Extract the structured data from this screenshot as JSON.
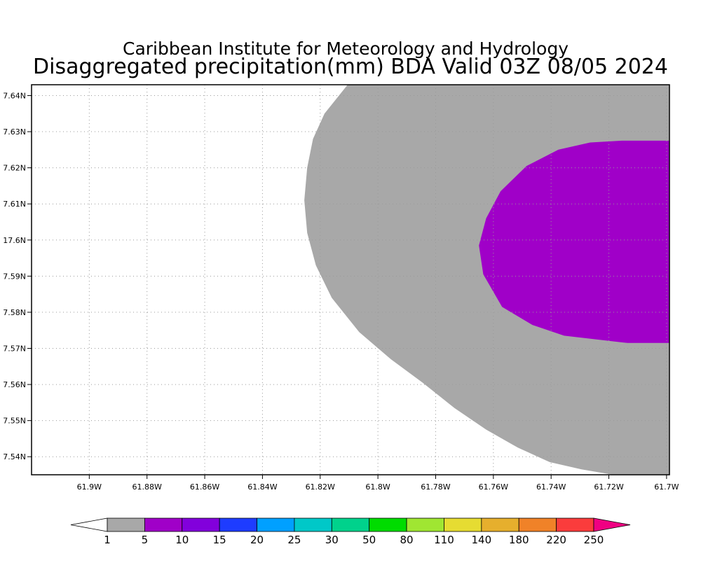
{
  "map": {
    "title_line1": "Caribbean Institute for Meteorology and Hydrology",
    "title_line2": "Disaggregated precipitation(mm) BDA Valid 03Z 08/05 2024",
    "lon_range": [
      -61.92,
      -61.699
    ],
    "lat_range": [
      17.535,
      17.643
    ],
    "x_ticks": [
      {
        "lon": -61.9,
        "label": "61.9W"
      },
      {
        "lon": -61.88,
        "label": "61.88W"
      },
      {
        "lon": -61.86,
        "label": "61.86W"
      },
      {
        "lon": -61.84,
        "label": "61.84W"
      },
      {
        "lon": -61.82,
        "label": "61.82W"
      },
      {
        "lon": -61.8,
        "label": "61.8W"
      },
      {
        "lon": -61.78,
        "label": "61.78W"
      },
      {
        "lon": -61.76,
        "label": "61.76W"
      },
      {
        "lon": -61.74,
        "label": "61.74W"
      },
      {
        "lon": -61.72,
        "label": "61.72W"
      },
      {
        "lon": -61.7,
        "label": "61.7W"
      }
    ],
    "y_ticks": [
      {
        "lat": 17.64,
        "label": "7.64N"
      },
      {
        "lat": 17.63,
        "label": "7.63N"
      },
      {
        "lat": 17.62,
        "label": "7.62N"
      },
      {
        "lat": 17.61,
        "label": "7.61N"
      },
      {
        "lat": 17.6,
        "label": "17.6N"
      },
      {
        "lat": 17.59,
        "label": "7.59N"
      },
      {
        "lat": 17.58,
        "label": "7.58N"
      },
      {
        "lat": 17.57,
        "label": "7.57N"
      },
      {
        "lat": 17.56,
        "label": "7.56N"
      },
      {
        "lat": 17.55,
        "label": "7.55N"
      },
      {
        "lat": 17.54,
        "label": "7.54N"
      }
    ],
    "grid": true,
    "contours": [
      {
        "name": "1-5 mm",
        "color": "#a8a8a8",
        "points": [
          [
            -61.8105,
            17.643
          ],
          [
            -61.699,
            17.643
          ],
          [
            -61.699,
            17.535
          ],
          [
            -61.7185,
            17.535
          ],
          [
            -61.7295,
            17.5365
          ],
          [
            -61.7405,
            17.5385
          ],
          [
            -61.7515,
            17.5425
          ],
          [
            -61.7625,
            17.5475
          ],
          [
            -61.7735,
            17.5535
          ],
          [
            -61.7845,
            17.5605
          ],
          [
            -61.7955,
            17.567
          ],
          [
            -61.8065,
            17.5745
          ],
          [
            -61.816,
            17.584
          ],
          [
            -61.8215,
            17.593
          ],
          [
            -61.8245,
            17.602
          ],
          [
            -61.8255,
            17.611
          ],
          [
            -61.8245,
            17.62
          ],
          [
            -61.8225,
            17.628
          ],
          [
            -61.8185,
            17.635
          ]
        ]
      },
      {
        "name": "5-10 mm",
        "color": "#a000c8",
        "points": [
          [
            -61.699,
            17.6275
          ],
          [
            -61.7155,
            17.6275
          ],
          [
            -61.7265,
            17.627
          ],
          [
            -61.7375,
            17.625
          ],
          [
            -61.7485,
            17.6205
          ],
          [
            -61.7575,
            17.6135
          ],
          [
            -61.7625,
            17.606
          ],
          [
            -61.765,
            17.5985
          ],
          [
            -61.7635,
            17.5905
          ],
          [
            -61.757,
            17.5815
          ],
          [
            -61.7465,
            17.5765
          ],
          [
            -61.7355,
            17.5735
          ],
          [
            -61.7245,
            17.5725
          ],
          [
            -61.7135,
            17.5715
          ],
          [
            -61.699,
            17.5715
          ]
        ]
      }
    ],
    "colorbar": {
      "levels": [
        "1",
        "5",
        "10",
        "15",
        "20",
        "25",
        "30",
        "50",
        "80",
        "110",
        "140",
        "180",
        "220",
        "250"
      ],
      "colors": [
        "#ffffff",
        "#a8a8a8",
        "#a000c8",
        "#8200dc",
        "#1e3cff",
        "#00a0ff",
        "#00c8c8",
        "#00d28c",
        "#00dc00",
        "#a0e632",
        "#e6dc32",
        "#e6af2d",
        "#f08228",
        "#fa3c3c",
        "#f00082"
      ]
    }
  }
}
